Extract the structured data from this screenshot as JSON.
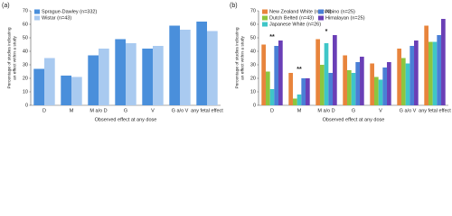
{
  "chart_data": [
    {
      "type": "bar",
      "panel": "(a)",
      "ylabel": [
        "Percentage of studies indicating",
        "an effect within a study"
      ],
      "xlabel": "Observed effect at any dose",
      "categories": [
        "D",
        "M",
        "M a/o D",
        "G",
        "V",
        "G a/o V",
        "any fetal effect"
      ],
      "series": [
        {
          "name": "Sprague-Dawley (n=332)",
          "color": "#4a8fdb",
          "values": [
            27,
            22,
            37,
            49,
            42,
            59,
            62
          ]
        },
        {
          "name": "Wistar (n=43)",
          "color": "#a9caf0",
          "values": [
            35,
            21,
            42,
            46,
            44,
            56,
            55
          ]
        }
      ],
      "ylim": [
        0,
        70
      ],
      "yticks": [
        0,
        10,
        20,
        30,
        40,
        50,
        60,
        70
      ],
      "legend": "upper left",
      "legend_columns": 1
    },
    {
      "type": "bar",
      "panel": "(b)",
      "ylabel": [
        "Percentage of studies indicating",
        "an effect within a study"
      ],
      "xlabel": "Observed effect at any dose",
      "categories": [
        "D",
        "M",
        "M a/o D",
        "G",
        "V",
        "G a/o V",
        "any fetal effect"
      ],
      "series": [
        {
          "name": "New Zealand White (n=244)",
          "color": "#e8843c",
          "values": [
            45,
            24,
            49,
            37,
            31,
            42,
            59
          ]
        },
        {
          "name": "Dutch Belted (n=43)",
          "color": "#8cc63f",
          "values": [
            25,
            5,
            30,
            26,
            21,
            35,
            47
          ]
        },
        {
          "name": "Japanese White (n=26)",
          "color": "#3fc6c8",
          "values": [
            12,
            8,
            46,
            24,
            19,
            31,
            47
          ]
        },
        {
          "name": "Albino (n=25)",
          "color": "#4a7fd6",
          "values": [
            44,
            20,
            24,
            32,
            28,
            44,
            52
          ]
        },
        {
          "name": "Himalayan (n=25)",
          "color": "#6a3fb6",
          "values": [
            48,
            20,
            52,
            36,
            32,
            48,
            64
          ]
        }
      ],
      "annotations": [
        {
          "text": "**",
          "category": "D"
        },
        {
          "text": "**",
          "category": "M"
        },
        {
          "text": "*",
          "category": "M a/o D"
        }
      ],
      "ylim": [
        0,
        70
      ],
      "yticks": [
        0,
        10,
        20,
        30,
        40,
        50,
        60,
        70
      ],
      "legend": "upper left",
      "legend_columns": 2
    }
  ]
}
